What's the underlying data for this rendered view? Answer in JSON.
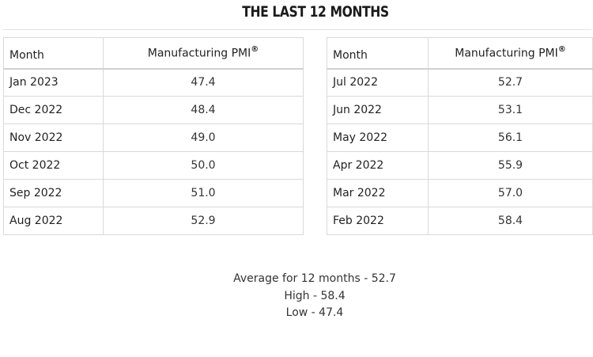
{
  "heading": "THE LAST 12 MONTHS",
  "columns": {
    "month": "Month",
    "pmi": "Manufacturing PMI",
    "pmi_mark": "®"
  },
  "left_table": [
    {
      "month": "Jan 2023",
      "value": "47.4"
    },
    {
      "month": "Dec 2022",
      "value": "48.4"
    },
    {
      "month": "Nov 2022",
      "value": "49.0"
    },
    {
      "month": "Oct 2022",
      "value": "50.0"
    },
    {
      "month": "Sep 2022",
      "value": "51.0"
    },
    {
      "month": "Aug 2022",
      "value": "52.9"
    }
  ],
  "right_table": [
    {
      "month": "Jul 2022",
      "value": "52.7"
    },
    {
      "month": "Jun 2022",
      "value": "53.1"
    },
    {
      "month": "May 2022",
      "value": "56.1"
    },
    {
      "month": "Apr 2022",
      "value": "55.9"
    },
    {
      "month": "Mar 2022",
      "value": "57.0"
    },
    {
      "month": "Feb 2022",
      "value": "58.4"
    }
  ],
  "summary": {
    "average": "Average for 12 months - 52.7",
    "high": "High - 58.4",
    "low": "Low - 47.4"
  }
}
